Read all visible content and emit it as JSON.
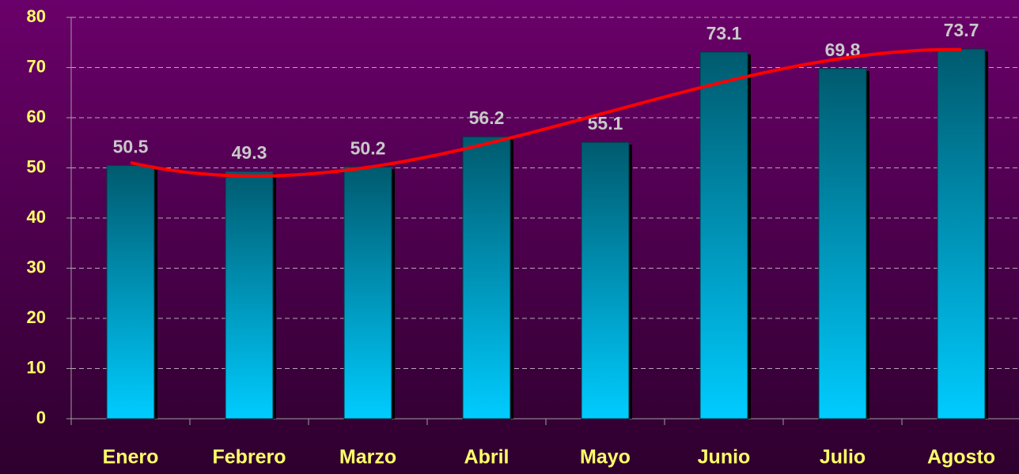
{
  "chart_data": {
    "type": "bar",
    "categories": [
      "Enero",
      "Febrero",
      "Marzo",
      "Abril",
      "Mayo",
      "Junio",
      "Julio",
      "Agosto"
    ],
    "values": [
      50.5,
      49.3,
      50.2,
      56.2,
      55.1,
      73.1,
      69.8,
      73.7
    ],
    "color": "#00ccff",
    "ylim": [
      0,
      80
    ],
    "yticks": [
      0,
      10,
      20,
      30,
      40,
      50,
      60,
      70,
      80
    ],
    "grid": true,
    "trendline": "polynomial",
    "trendline_color": "#ff0000"
  }
}
